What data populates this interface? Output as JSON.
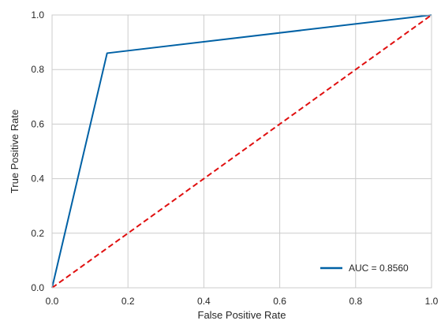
{
  "chart_data": {
    "type": "line",
    "title": "",
    "xlabel": "False Positive Rate",
    "ylabel": "True Positive Rate",
    "xlim": [
      0.0,
      1.0
    ],
    "ylim": [
      0.0,
      1.0
    ],
    "xticks": [
      "0.0",
      "0.2",
      "0.4",
      "0.6",
      "0.8",
      "1.0"
    ],
    "yticks": [
      "0.0",
      "0.2",
      "0.4",
      "0.6",
      "0.8",
      "1.0"
    ],
    "grid": true,
    "legend_position": "lower-right",
    "series": [
      {
        "name": "AUC = 0.8560",
        "color": "#0061a5",
        "style": "solid",
        "x": [
          0.0,
          0.145,
          1.0
        ],
        "y": [
          0.0,
          0.86,
          1.0
        ]
      },
      {
        "name": "",
        "color": "#e00f0f",
        "style": "dashed",
        "x": [
          0.0,
          1.0
        ],
        "y": [
          0.0,
          1.0
        ]
      }
    ]
  }
}
